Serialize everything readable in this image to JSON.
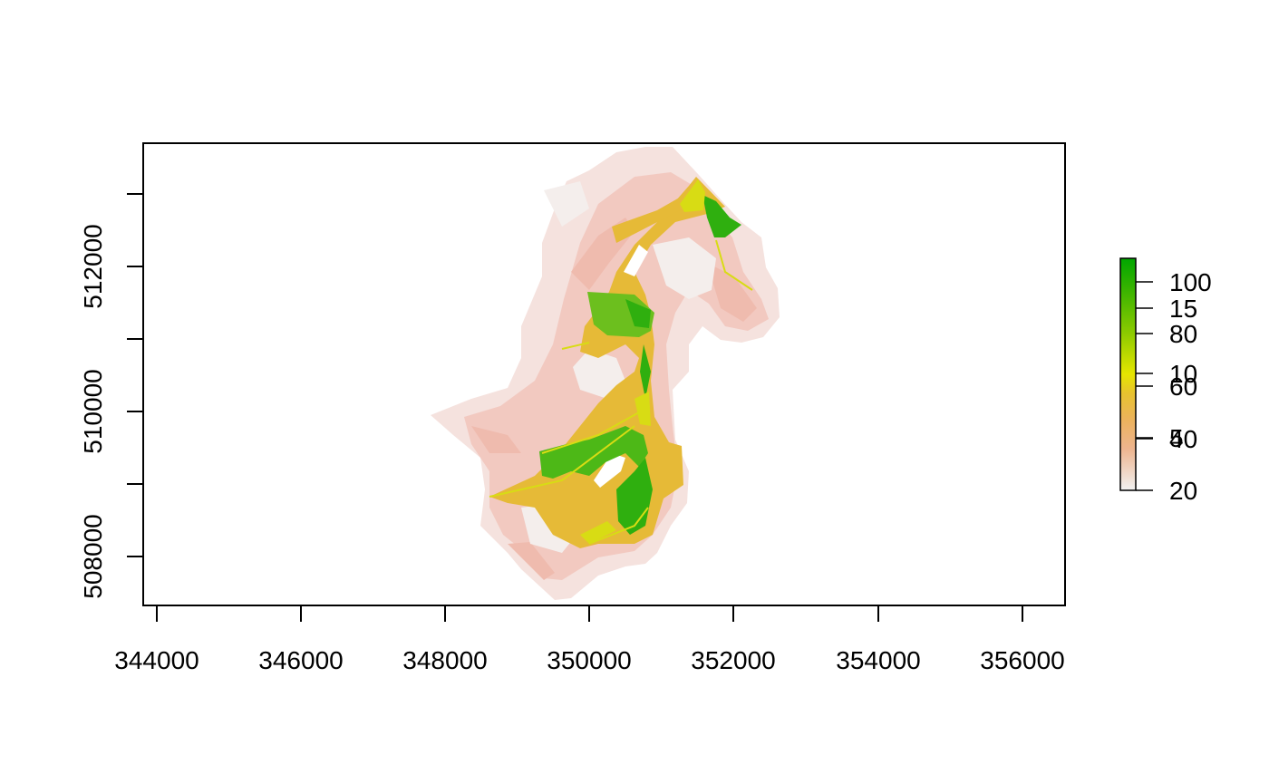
{
  "map": {
    "x_ticks": [
      "344000",
      "346000",
      "348000",
      "350000",
      "352000",
      "354000",
      "356000"
    ],
    "y_ticks": [
      "508000",
      "510000",
      "512000"
    ],
    "xlim": [
      343800,
      356600
    ],
    "ylim": [
      507450,
      513850
    ],
    "legend": {
      "labels": [
        "100",
        "15",
        "80",
        "10",
        "60",
        "5",
        "40",
        "20"
      ],
      "colors": [
        "#00A600",
        "#3FB500",
        "#8BCA00",
        "#E6E600",
        "#E8C32E",
        "#EBB25E",
        "#EDB48E",
        "#F2F2F2"
      ]
    },
    "landcover": {
      "outline": [
        "#F2C9C0",
        "#EFBBAE",
        "#F5E2DE"
      ],
      "corridor": "#E6BA37",
      "forest": [
        "#6CBF1E",
        "#2FAF0F",
        "#4DB817"
      ],
      "meadow": "#D8DC14"
    }
  }
}
